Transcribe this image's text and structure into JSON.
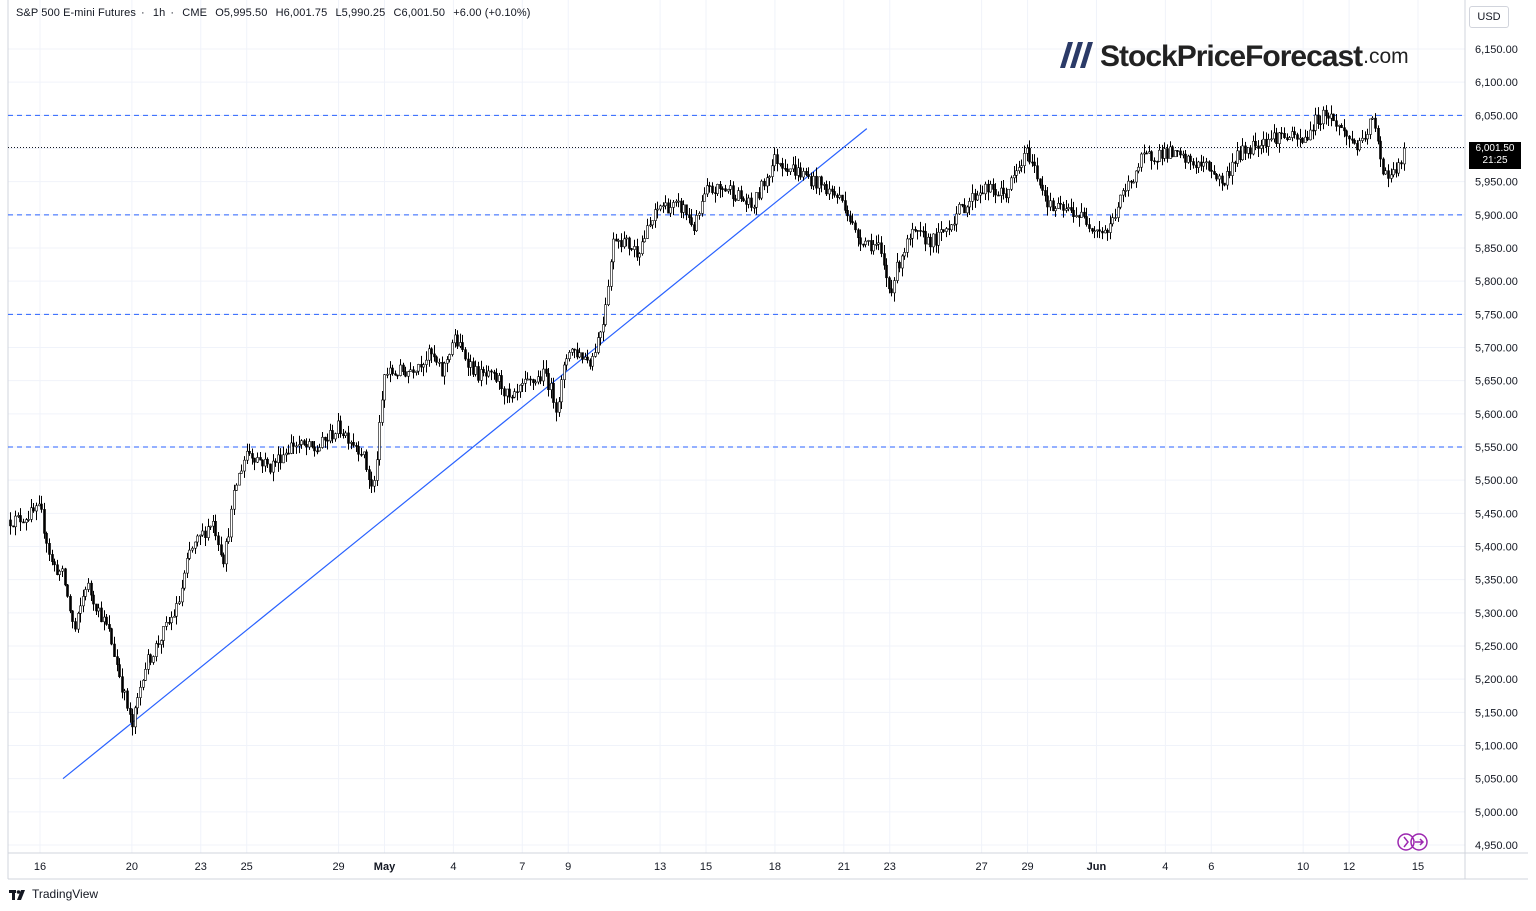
{
  "header": {
    "symbol": "S&P 500 E-mini Futures",
    "interval": "1h",
    "exchange": "CME",
    "open": "O5,995.50",
    "high": "H6,001.75",
    "low": "L5,990.25",
    "close": "C6,001.50",
    "change": "+6.00 (+0.10%)"
  },
  "currency": "USD",
  "logo": {
    "name": "StockPriceForecast",
    "tld": ".com"
  },
  "last_price": {
    "price": "6,001.50",
    "countdown": "21:25"
  },
  "branding": "TradingView",
  "colors": {
    "candle": "#000000",
    "trendline": "#2962ff",
    "level_lines": "#2962ff",
    "logo_bars": "#2b3a67"
  },
  "chart_data": {
    "type": "candlestick",
    "ylim": [
      4925,
      6175
    ],
    "y_ticks": [
      "6,150.00",
      "6,100.00",
      "6,050.00",
      "6,000.00",
      "5,950.00",
      "5,900.00",
      "5,850.00",
      "5,800.00",
      "5,750.00",
      "5,700.00",
      "5,650.00",
      "5,600.00",
      "5,550.00",
      "5,500.00",
      "5,450.00",
      "5,400.00",
      "5,350.00",
      "5,300.00",
      "5,250.00",
      "5,200.00",
      "5,150.00",
      "5,100.00",
      "5,050.00",
      "5,000.00",
      "4,950.00"
    ],
    "x_ticks": [
      "16",
      "20",
      "23",
      "25",
      "29",
      "May",
      "4",
      "7",
      "9",
      "13",
      "15",
      "18",
      "21",
      "23",
      "27",
      "29",
      "Jun",
      "4",
      "6",
      "10",
      "12",
      "15"
    ],
    "horizontal_levels": [
      6050,
      5900,
      5750,
      5550
    ],
    "current_price_line": 6001.5,
    "trendline": {
      "x": [
        "Apr 17",
        "May 22"
      ],
      "y": [
        5050,
        6030
      ]
    },
    "path": [
      [
        "Apr 15",
        5440
      ],
      [
        "Apr 16",
        5455
      ],
      [
        "Apr 16",
        5375
      ],
      [
        "Apr 17",
        5355
      ],
      [
        "Apr 17",
        5270
      ],
      [
        "Apr 18",
        5345
      ],
      [
        "Apr 19",
        5270
      ],
      [
        "Apr 19",
        5200
      ],
      [
        "Apr 20",
        5125
      ],
      [
        "Apr 20",
        5215
      ],
      [
        "Apr 22",
        5310
      ],
      [
        "Apr 22",
        5390
      ],
      [
        "Apr 23",
        5415
      ],
      [
        "Apr 23",
        5440
      ],
      [
        "Apr 24",
        5380
      ],
      [
        "Apr 24",
        5490
      ],
      [
        "Apr 25",
        5545
      ],
      [
        "Apr 26",
        5520
      ],
      [
        "Apr 27",
        5555
      ],
      [
        "Apr 28",
        5545
      ],
      [
        "Apr 29",
        5580
      ],
      [
        "Apr 30",
        5545
      ],
      [
        "Apr 30",
        5480
      ],
      [
        "May 1",
        5660
      ],
      [
        "May 2",
        5665
      ],
      [
        "May 3",
        5690
      ],
      [
        "May 3",
        5660
      ],
      [
        "May 4",
        5715
      ],
      [
        "May 5",
        5660
      ],
      [
        "May 6",
        5650
      ],
      [
        "May 6",
        5615
      ],
      [
        "May 7",
        5640
      ],
      [
        "May 8",
        5660
      ],
      [
        "May 8",
        5610
      ],
      [
        "May 9",
        5700
      ],
      [
        "May 10",
        5680
      ],
      [
        "May 10",
        5740
      ],
      [
        "May 11",
        5870
      ],
      [
        "May 12",
        5845
      ],
      [
        "May 13",
        5915
      ],
      [
        "May 14",
        5910
      ],
      [
        "May 14",
        5880
      ],
      [
        "May 15",
        5935
      ],
      [
        "May 16",
        5940
      ],
      [
        "May 17",
        5910
      ],
      [
        "May 18",
        5985
      ],
      [
        "May 19",
        5965
      ],
      [
        "May 20",
        5945
      ],
      [
        "May 21",
        5920
      ],
      [
        "May 21",
        5870
      ],
      [
        "May 22",
        5860
      ],
      [
        "May 22",
        5850
      ],
      [
        "May 23",
        5785
      ],
      [
        "May 23",
        5840
      ],
      [
        "May 24",
        5870
      ],
      [
        "May 25",
        5860
      ],
      [
        "May 26",
        5905
      ],
      [
        "May 27",
        5940
      ],
      [
        "May 28",
        5930
      ],
      [
        "May 29",
        5995
      ],
      [
        "May 30",
        5910
      ],
      [
        "May 31",
        5905
      ],
      [
        "Jun 1",
        5880
      ],
      [
        "Jun 1",
        5875
      ],
      [
        "Jun 2",
        5920
      ],
      [
        "Jun 3",
        5985
      ],
      [
        "Jun 4",
        5995
      ],
      [
        "Jun 5",
        5980
      ],
      [
        "Jun 6",
        5970
      ],
      [
        "Jun 6",
        5945
      ],
      [
        "Jun 7",
        5985
      ],
      [
        "Jun 8",
        6010
      ],
      [
        "Jun 9",
        6020
      ],
      [
        "Jun 10",
        6010
      ],
      [
        "Jun 10",
        6040
      ],
      [
        "Jun 11",
        6055
      ],
      [
        "Jun 12",
        6015
      ],
      [
        "Jun 12",
        6000
      ],
      [
        "Jun 13",
        6045
      ],
      [
        "Jun 13",
        5965
      ],
      [
        "Jun 13",
        5960
      ],
      [
        "Jun 14",
        6001.5
      ]
    ]
  }
}
